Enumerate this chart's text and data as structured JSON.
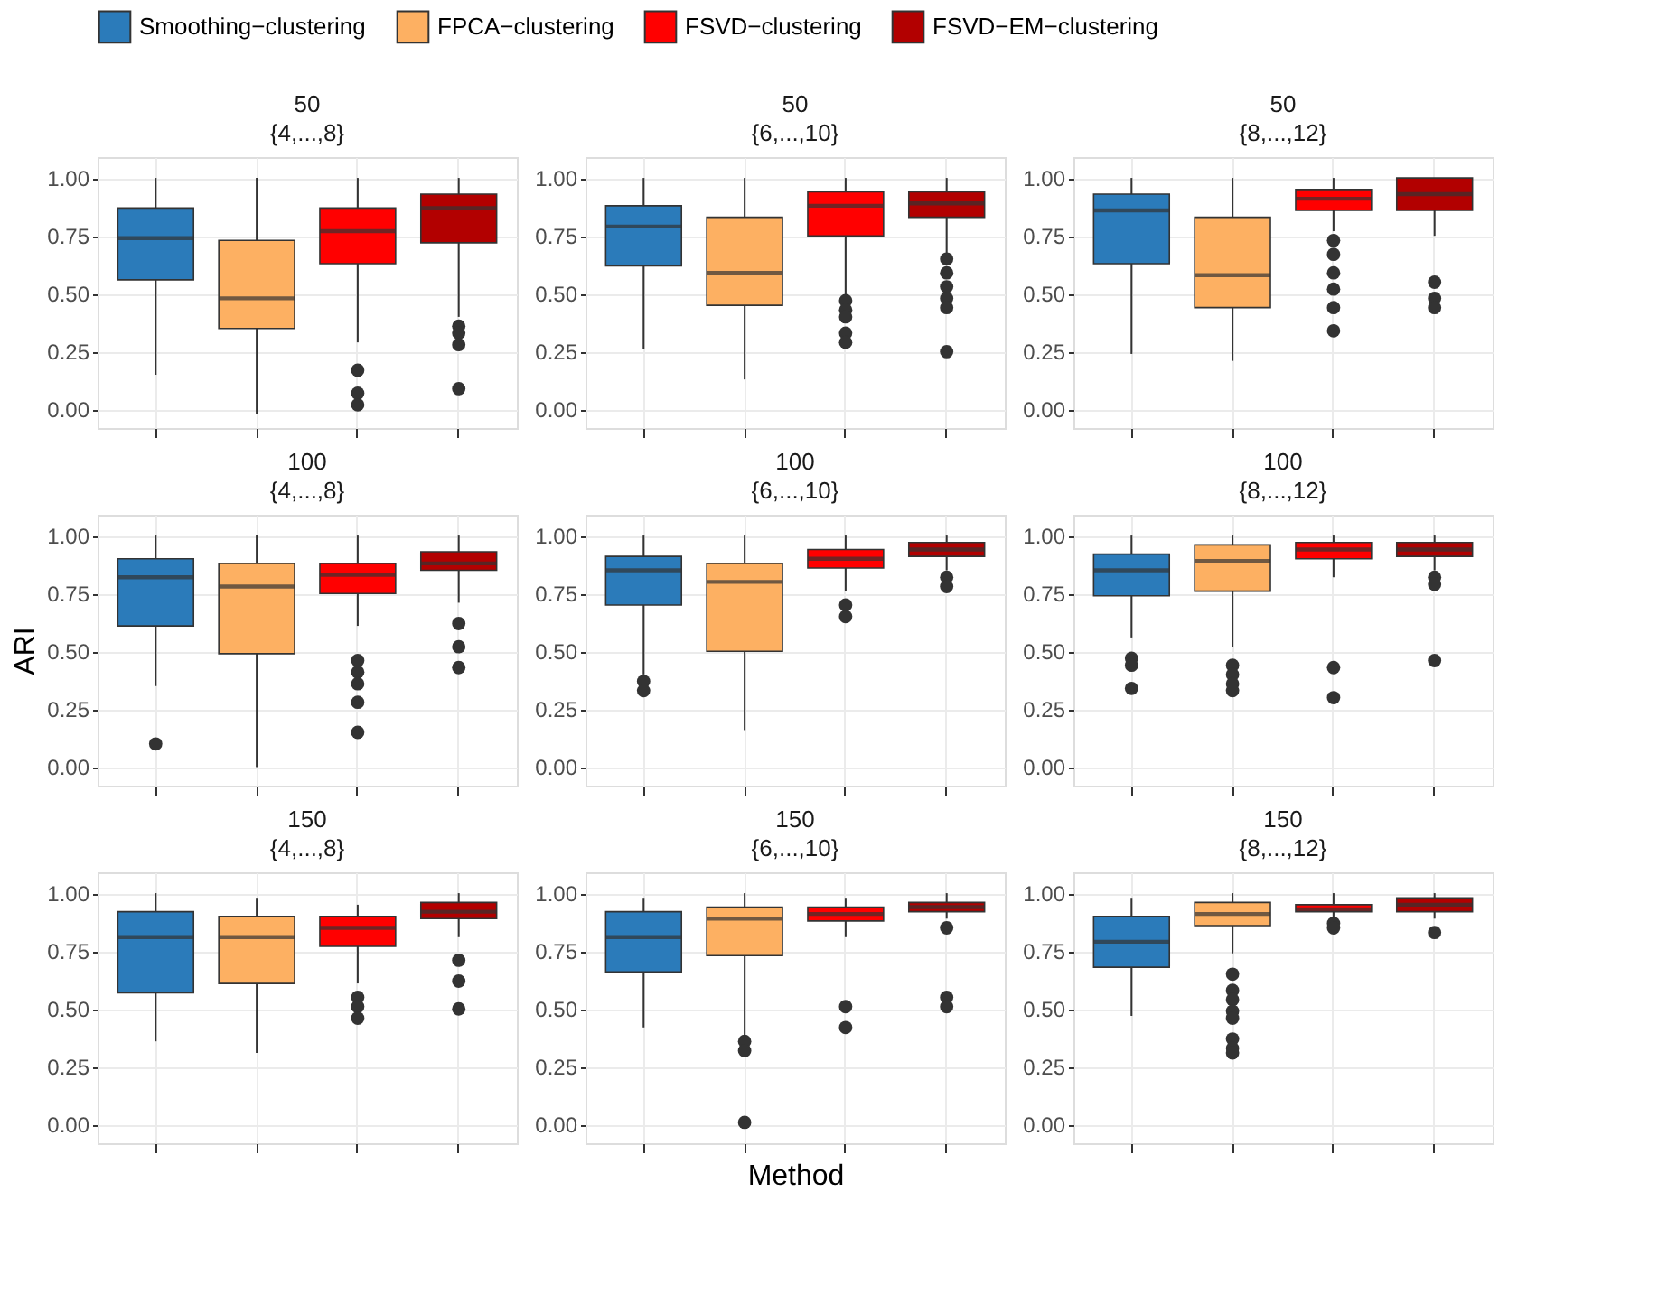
{
  "chart_data": [
    {
      "type": "box",
      "title": "50",
      "subtitle": "{4,...,8}",
      "categories": [
        null
      ],
      "legend": "top",
      "grid": true,
      "tick_labels": "y",
      "ylim": [
        -0.08,
        1.09
      ],
      "yticks": [
        {
          "value": 0,
          "label": "0.00"
        },
        {
          "value": 0.25,
          "label": "0.25"
        },
        {
          "value": 0.5,
          "label": "0.50"
        },
        {
          "value": 0.75,
          "label": "0.75"
        },
        {
          "value": 1,
          "label": "1.00"
        }
      ],
      "series": [
        {
          "name": "Smoothing−clustering",
          "color": "#2b7bba",
          "boxes": [
            {
              "low": 0.15,
              "q1": 0.56,
              "median": 0.74,
              "q3": 0.87,
              "high": 1.0
            }
          ]
        },
        {
          "name": "FPCA−clustering",
          "color": "#fdb062",
          "boxes": [
            {
              "low": -0.02,
              "q1": 0.35,
              "median": 0.48,
              "q3": 0.73,
              "high": 1.0
            }
          ]
        },
        {
          "name": "FSVD−clustering",
          "color": "#ff0000",
          "boxes": [
            {
              "low": 0.29,
              "q1": 0.63,
              "median": 0.77,
              "q3": 0.87,
              "high": 1.0,
              "outliers": [
                0.17,
                0.07,
                0.02
              ]
            }
          ]
        },
        {
          "name": "FSVD−EM−clustering",
          "color": "#b20000",
          "boxes": [
            {
              "low": 0.4,
              "q1": 0.72,
              "median": 0.87,
              "q3": 0.93,
              "high": 1.0,
              "outliers": [
                0.36,
                0.33,
                0.28,
                0.09
              ]
            }
          ]
        }
      ]
    },
    {
      "type": "box",
      "title": "50",
      "subtitle": "{6,...,10}",
      "categories": [
        null
      ],
      "grid": true,
      "tick_labels": "y",
      "ylim": [
        -0.08,
        1.09
      ],
      "yticks": [
        {
          "value": 0,
          "label": "0.00"
        },
        {
          "value": 0.25,
          "label": "0.25"
        },
        {
          "value": 0.5,
          "label": "0.50"
        },
        {
          "value": 0.75,
          "label": "0.75"
        },
        {
          "value": 1,
          "label": "1.00"
        }
      ],
      "series": [
        {
          "color": "#2b7bba",
          "boxes": [
            {
              "low": 0.26,
              "q1": 0.62,
              "median": 0.79,
              "q3": 0.88,
              "high": 1.0
            }
          ]
        },
        {
          "color": "#fdb062",
          "boxes": [
            {
              "low": 0.13,
              "q1": 0.45,
              "median": 0.59,
              "q3": 0.83,
              "high": 1.0
            }
          ]
        },
        {
          "color": "#ff0000",
          "boxes": [
            {
              "low": 0.49,
              "q1": 0.75,
              "median": 0.88,
              "q3": 0.94,
              "high": 1.0,
              "outliers": [
                0.47,
                0.43,
                0.4,
                0.33,
                0.29
              ]
            }
          ]
        },
        {
          "color": "#b20000",
          "boxes": [
            {
              "low": 0.67,
              "q1": 0.83,
              "median": 0.89,
              "q3": 0.94,
              "high": 1.0,
              "outliers": [
                0.65,
                0.59,
                0.53,
                0.48,
                0.44,
                0.25
              ]
            }
          ]
        }
      ]
    },
    {
      "type": "box",
      "title": "50",
      "subtitle": "{8,...,12}",
      "categories": [
        null
      ],
      "grid": true,
      "tick_labels": "y",
      "ylim": [
        -0.08,
        1.09
      ],
      "yticks": [
        {
          "value": 0,
          "label": "0.00"
        },
        {
          "value": 0.25,
          "label": "0.25"
        },
        {
          "value": 0.5,
          "label": "0.50"
        },
        {
          "value": 0.75,
          "label": "0.75"
        },
        {
          "value": 1,
          "label": "1.00"
        }
      ],
      "series": [
        {
          "color": "#2b7bba",
          "boxes": [
            {
              "low": 0.24,
              "q1": 0.63,
              "median": 0.86,
              "q3": 0.93,
              "high": 1.0
            }
          ]
        },
        {
          "color": "#fdb062",
          "boxes": [
            {
              "low": 0.21,
              "q1": 0.44,
              "median": 0.58,
              "q3": 0.83,
              "high": 1.0
            }
          ]
        },
        {
          "color": "#ff0000",
          "boxes": [
            {
              "low": 0.77,
              "q1": 0.86,
              "median": 0.91,
              "q3": 0.95,
              "high": 1.0,
              "outliers": [
                0.73,
                0.67,
                0.59,
                0.52,
                0.44,
                0.34
              ]
            }
          ]
        },
        {
          "color": "#b20000",
          "boxes": [
            {
              "low": 0.75,
              "q1": 0.86,
              "median": 0.93,
              "q3": 1.0,
              "high": 1.0,
              "outliers": [
                0.55,
                0.48,
                0.44
              ]
            }
          ]
        }
      ]
    },
    {
      "type": "box",
      "title": "100",
      "subtitle": "{4,...,8}",
      "ylabel": "ARI",
      "categories": [
        null
      ],
      "grid": true,
      "tick_labels": "y",
      "ylim": [
        -0.08,
        1.09
      ],
      "yticks": [
        {
          "value": 0,
          "label": "0.00"
        },
        {
          "value": 0.25,
          "label": "0.25"
        },
        {
          "value": 0.5,
          "label": "0.50"
        },
        {
          "value": 0.75,
          "label": "0.75"
        },
        {
          "value": 1,
          "label": "1.00"
        }
      ],
      "series": [
        {
          "color": "#2b7bba",
          "boxes": [
            {
              "low": 0.35,
              "q1": 0.61,
              "median": 0.82,
              "q3": 0.9,
              "high": 1.0,
              "outliers": [
                0.1
              ]
            }
          ]
        },
        {
          "color": "#fdb062",
          "boxes": [
            {
              "low": 0.0,
              "q1": 0.49,
              "median": 0.78,
              "q3": 0.88,
              "high": 1.0
            }
          ]
        },
        {
          "color": "#ff0000",
          "boxes": [
            {
              "low": 0.61,
              "q1": 0.75,
              "median": 0.83,
              "q3": 0.88,
              "high": 1.0,
              "outliers": [
                0.46,
                0.41,
                0.36,
                0.28,
                0.15
              ]
            }
          ]
        },
        {
          "color": "#b20000",
          "boxes": [
            {
              "low": 0.71,
              "q1": 0.85,
              "median": 0.88,
              "q3": 0.93,
              "high": 1.0,
              "outliers": [
                0.62,
                0.52,
                0.43
              ]
            }
          ]
        }
      ]
    },
    {
      "type": "box",
      "title": "100",
      "subtitle": "{6,...,10}",
      "categories": [
        null
      ],
      "grid": true,
      "tick_labels": "y",
      "ylim": [
        -0.08,
        1.09
      ],
      "yticks": [
        {
          "value": 0,
          "label": "0.00"
        },
        {
          "value": 0.25,
          "label": "0.25"
        },
        {
          "value": 0.5,
          "label": "0.50"
        },
        {
          "value": 0.75,
          "label": "0.75"
        },
        {
          "value": 1,
          "label": "1.00"
        }
      ],
      "series": [
        {
          "color": "#2b7bba",
          "boxes": [
            {
              "low": 0.4,
              "q1": 0.7,
              "median": 0.85,
              "q3": 0.91,
              "high": 1.0,
              "outliers": [
                0.37,
                0.33
              ]
            }
          ]
        },
        {
          "color": "#fdb062",
          "boxes": [
            {
              "low": 0.16,
              "q1": 0.5,
              "median": 0.8,
              "q3": 0.88,
              "high": 1.0
            }
          ]
        },
        {
          "color": "#ff0000",
          "boxes": [
            {
              "low": 0.76,
              "q1": 0.86,
              "median": 0.9,
              "q3": 0.94,
              "high": 1.0,
              "outliers": [
                0.7,
                0.65
              ]
            }
          ]
        },
        {
          "color": "#b20000",
          "boxes": [
            {
              "low": 0.85,
              "q1": 0.91,
              "median": 0.94,
              "q3": 0.97,
              "high": 1.0,
              "outliers": [
                0.82,
                0.78
              ]
            }
          ]
        }
      ]
    },
    {
      "type": "box",
      "title": "100",
      "subtitle": "{8,...,12}",
      "categories": [
        null
      ],
      "grid": true,
      "tick_labels": "y",
      "ylim": [
        -0.08,
        1.09
      ],
      "yticks": [
        {
          "value": 0,
          "label": "0.00"
        },
        {
          "value": 0.25,
          "label": "0.25"
        },
        {
          "value": 0.5,
          "label": "0.50"
        },
        {
          "value": 0.75,
          "label": "0.75"
        },
        {
          "value": 1,
          "label": "1.00"
        }
      ],
      "series": [
        {
          "color": "#2b7bba",
          "boxes": [
            {
              "low": 0.56,
              "q1": 0.74,
              "median": 0.85,
              "q3": 0.92,
              "high": 1.0,
              "outliers": [
                0.47,
                0.44,
                0.34
              ]
            }
          ]
        },
        {
          "color": "#fdb062",
          "boxes": [
            {
              "low": 0.52,
              "q1": 0.76,
              "median": 0.89,
              "q3": 0.96,
              "high": 1.0,
              "outliers": [
                0.44,
                0.4,
                0.36,
                0.33
              ]
            }
          ]
        },
        {
          "color": "#ff0000",
          "boxes": [
            {
              "low": 0.82,
              "q1": 0.9,
              "median": 0.94,
              "q3": 0.97,
              "high": 1.0,
              "outliers": [
                0.43,
                0.3
              ]
            }
          ]
        },
        {
          "color": "#b20000",
          "boxes": [
            {
              "low": 0.85,
              "q1": 0.91,
              "median": 0.94,
              "q3": 0.97,
              "high": 1.0,
              "outliers": [
                0.82,
                0.79,
                0.46
              ]
            }
          ]
        }
      ]
    },
    {
      "type": "box",
      "title": "150",
      "subtitle": "{4,...,8}",
      "categories": [
        null
      ],
      "grid": true,
      "tick_labels": "y",
      "ylim": [
        -0.08,
        1.09
      ],
      "yticks": [
        {
          "value": 0,
          "label": "0.00"
        },
        {
          "value": 0.25,
          "label": "0.25"
        },
        {
          "value": 0.5,
          "label": "0.50"
        },
        {
          "value": 0.75,
          "label": "0.75"
        },
        {
          "value": 1,
          "label": "1.00"
        }
      ],
      "series": [
        {
          "color": "#2b7bba",
          "boxes": [
            {
              "low": 0.36,
              "q1": 0.57,
              "median": 0.81,
              "q3": 0.92,
              "high": 1.0
            }
          ]
        },
        {
          "color": "#fdb062",
          "boxes": [
            {
              "low": 0.31,
              "q1": 0.61,
              "median": 0.81,
              "q3": 0.9,
              "high": 0.98
            }
          ]
        },
        {
          "color": "#ff0000",
          "boxes": [
            {
              "low": 0.61,
              "q1": 0.77,
              "median": 0.85,
              "q3": 0.9,
              "high": 0.95,
              "outliers": [
                0.55,
                0.51,
                0.46
              ]
            }
          ]
        },
        {
          "color": "#b20000",
          "boxes": [
            {
              "low": 0.81,
              "q1": 0.89,
              "median": 0.92,
              "q3": 0.96,
              "high": 1.0,
              "outliers": [
                0.71,
                0.62,
                0.5
              ]
            }
          ]
        }
      ]
    },
    {
      "type": "box",
      "title": "150",
      "subtitle": "{6,...,10}",
      "xlabel": "Method",
      "categories": [
        null
      ],
      "grid": true,
      "tick_labels": "y",
      "ylim": [
        -0.08,
        1.09
      ],
      "yticks": [
        {
          "value": 0,
          "label": "0.00"
        },
        {
          "value": 0.25,
          "label": "0.25"
        },
        {
          "value": 0.5,
          "label": "0.50"
        },
        {
          "value": 0.75,
          "label": "0.75"
        },
        {
          "value": 1,
          "label": "1.00"
        }
      ],
      "series": [
        {
          "color": "#2b7bba",
          "boxes": [
            {
              "low": 0.42,
              "q1": 0.66,
              "median": 0.81,
              "q3": 0.92,
              "high": 0.98
            }
          ]
        },
        {
          "color": "#fdb062",
          "boxes": [
            {
              "low": 0.38,
              "q1": 0.73,
              "median": 0.89,
              "q3": 0.94,
              "high": 1.0,
              "outliers": [
                0.36,
                0.32,
                0.01
              ]
            }
          ]
        },
        {
          "color": "#ff0000",
          "boxes": [
            {
              "low": 0.81,
              "q1": 0.88,
              "median": 0.91,
              "q3": 0.94,
              "high": 0.98,
              "outliers": [
                0.51,
                0.42
              ]
            }
          ]
        },
        {
          "color": "#b20000",
          "boxes": [
            {
              "low": 0.89,
              "q1": 0.92,
              "median": 0.94,
              "q3": 0.96,
              "high": 1.0,
              "outliers": [
                0.85,
                0.55,
                0.51
              ]
            }
          ]
        }
      ]
    },
    {
      "type": "box",
      "title": "150",
      "subtitle": "{8,...,12}",
      "categories": [
        null
      ],
      "grid": true,
      "tick_labels": "y",
      "ylim": [
        -0.08,
        1.09
      ],
      "yticks": [
        {
          "value": 0,
          "label": "0.00"
        },
        {
          "value": 0.25,
          "label": "0.25"
        },
        {
          "value": 0.5,
          "label": "0.50"
        },
        {
          "value": 0.75,
          "label": "0.75"
        },
        {
          "value": 1,
          "label": "1.00"
        }
      ],
      "series": [
        {
          "color": "#2b7bba",
          "boxes": [
            {
              "low": 0.47,
              "q1": 0.68,
              "median": 0.79,
              "q3": 0.9,
              "high": 0.98
            }
          ]
        },
        {
          "color": "#fdb062",
          "boxes": [
            {
              "low": 0.74,
              "q1": 0.86,
              "median": 0.91,
              "q3": 0.96,
              "high": 1.0,
              "outliers": [
                0.65,
                0.58,
                0.54,
                0.49,
                0.46,
                0.37,
                0.33,
                0.31
              ]
            }
          ]
        },
        {
          "color": "#ff0000",
          "boxes": [
            {
              "low": 0.89,
              "q1": 0.92,
              "median": 0.93,
              "q3": 0.95,
              "high": 1.0,
              "outliers": [
                0.87,
                0.85
              ]
            }
          ]
        },
        {
          "color": "#b20000",
          "boxes": [
            {
              "low": 0.89,
              "q1": 0.92,
              "median": 0.95,
              "q3": 0.98,
              "high": 1.0,
              "outliers": [
                0.83
              ]
            }
          ]
        }
      ]
    }
  ]
}
